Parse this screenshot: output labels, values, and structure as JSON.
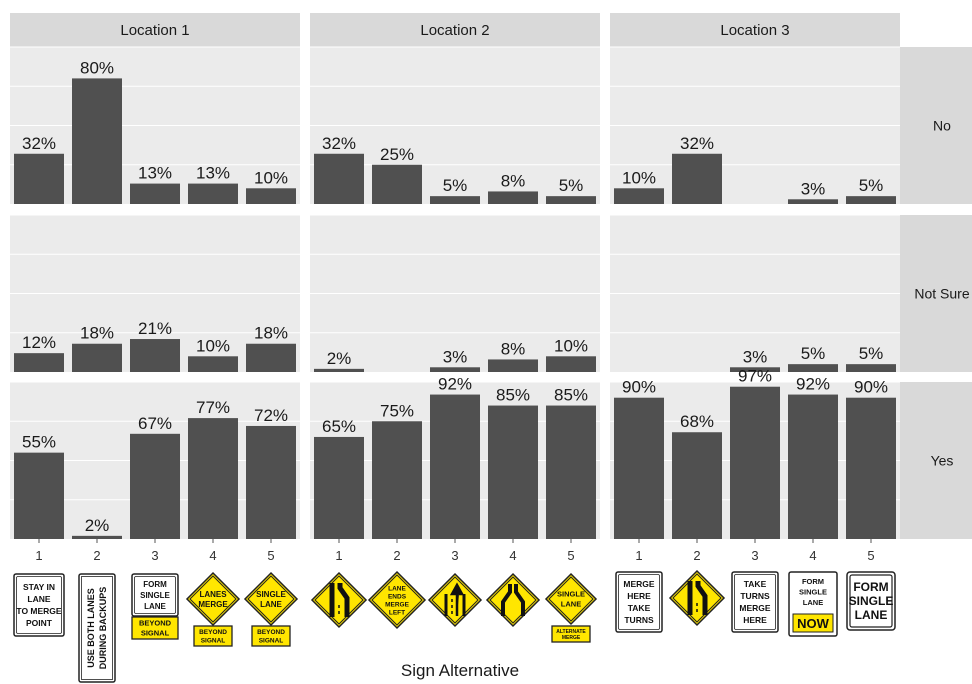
{
  "chart_data": {
    "type": "bar",
    "facet_columns": [
      "Location 1",
      "Location 2",
      "Location 3"
    ],
    "facet_rows": [
      "No",
      "Not Sure",
      "Yes"
    ],
    "categories": [
      "1",
      "2",
      "3",
      "4",
      "5"
    ],
    "xlabel": "Sign Alternative",
    "ylabel": "",
    "ylim": [
      0,
      100
    ],
    "grid": true,
    "value_unit": "%",
    "panels": [
      {
        "column": "Location 1",
        "row": "No",
        "values": [
          32,
          80,
          13,
          13,
          10
        ],
        "labels": [
          "32%",
          "80%",
          "13%",
          "13%",
          "10%"
        ]
      },
      {
        "column": "Location 2",
        "row": "No",
        "values": [
          32,
          25,
          5,
          8,
          5
        ],
        "labels": [
          "32%",
          "25%",
          "5%",
          "8%",
          "5%"
        ]
      },
      {
        "column": "Location 3",
        "row": "No",
        "values": [
          10,
          32,
          0,
          3,
          5
        ],
        "labels": [
          "10%",
          "32%",
          "",
          "3%",
          "5%"
        ]
      },
      {
        "column": "Location 1",
        "row": "Not Sure",
        "values": [
          12,
          18,
          21,
          10,
          18
        ],
        "labels": [
          "12%",
          "18%",
          "21%",
          "10%",
          "18%"
        ]
      },
      {
        "column": "Location 2",
        "row": "Not Sure",
        "values": [
          2,
          0,
          3,
          8,
          10
        ],
        "labels": [
          "2%",
          "",
          "3%",
          "8%",
          "10%"
        ]
      },
      {
        "column": "Location 3",
        "row": "Not Sure",
        "values": [
          0,
          0,
          3,
          5,
          5
        ],
        "labels": [
          "",
          "",
          "3%",
          "5%",
          "5%"
        ]
      },
      {
        "column": "Location 1",
        "row": "Yes",
        "values": [
          55,
          2,
          67,
          77,
          72
        ],
        "labels": [
          "55%",
          "2%",
          "67%",
          "77%",
          "72%"
        ]
      },
      {
        "column": "Location 2",
        "row": "Yes",
        "values": [
          65,
          75,
          92,
          85,
          85
        ],
        "labels": [
          "65%",
          "75%",
          "92%",
          "85%",
          "85%"
        ]
      },
      {
        "column": "Location 3",
        "row": "Yes",
        "values": [
          90,
          68,
          97,
          92,
          90
        ],
        "labels": [
          "90%",
          "68%",
          "97%",
          "92%",
          "90%"
        ]
      }
    ]
  },
  "colors": {
    "bar": "#505050",
    "panel_bg": "#ebebeb",
    "strip_bg": "#d9d9d9",
    "grid": "#ffffff",
    "sign_yellow": "#ffe600"
  },
  "signs": {
    "loc1": [
      {
        "text": [
          "STAY IN",
          "LANE",
          "TO MERGE",
          "POINT"
        ]
      },
      {
        "text": [
          "USE BOTH LANES",
          "DURING BACKUPS"
        ]
      },
      {
        "text": [
          "FORM",
          "SINGLE",
          "LANE"
        ],
        "plaque": [
          "BEYOND",
          "SIGNAL"
        ]
      },
      {
        "text": [
          "LANES",
          "MERGE"
        ],
        "plaque": [
          "BEYOND",
          "SIGNAL"
        ]
      },
      {
        "text": [
          "SINGLE",
          "LANE"
        ],
        "plaque": [
          "BEYOND",
          "SIGNAL"
        ]
      }
    ],
    "loc2": [
      {
        "icon": "lane-ends-merge-icon"
      },
      {
        "text": [
          "LANE",
          "ENDS",
          "MERGE",
          "LEFT"
        ]
      },
      {
        "icon": "lane-drop-arrow-icon"
      },
      {
        "icon": "lanes-merge-symbol-icon"
      },
      {
        "text": [
          "SINGLE",
          "LANE"
        ],
        "plaque": [
          "ALTERNATE",
          "MERGE"
        ]
      }
    ],
    "loc3": [
      {
        "text": [
          "MERGE",
          "HERE",
          "TAKE",
          "TURNS"
        ]
      },
      {
        "icon": "lane-ends-merge-icon"
      },
      {
        "text": [
          "TAKE",
          "TURNS",
          "MERGE",
          "HERE"
        ]
      },
      {
        "text": [
          "FORM",
          "SINGLE",
          "LANE"
        ],
        "plaque": [
          "NOW"
        ]
      },
      {
        "text": [
          "FORM",
          "SINGLE",
          "LANE"
        ]
      }
    ]
  }
}
